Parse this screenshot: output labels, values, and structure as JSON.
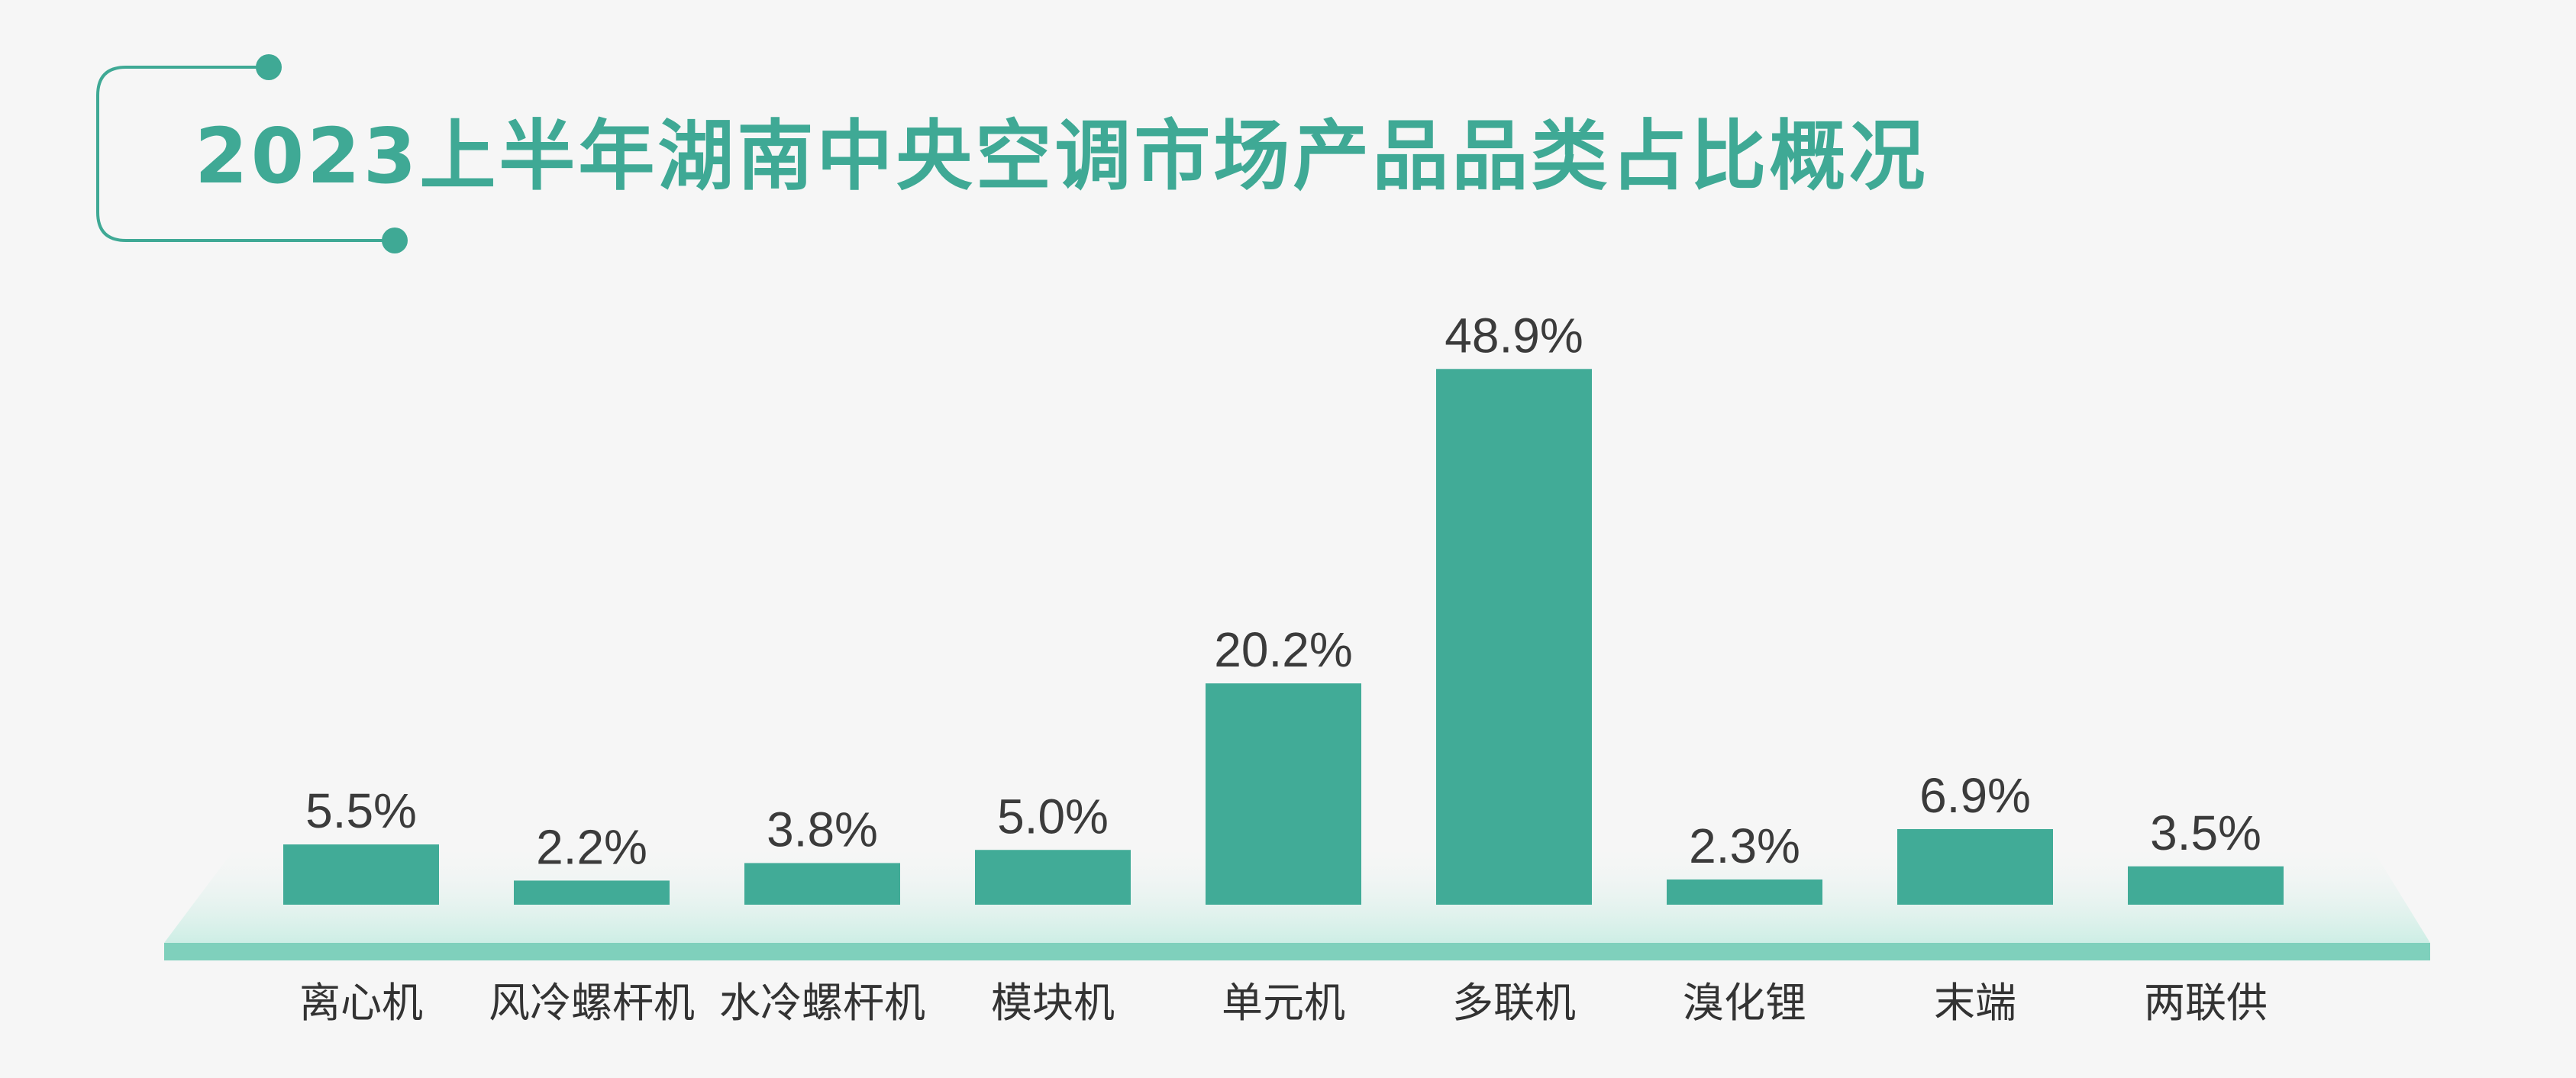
{
  "chart_data": {
    "type": "bar",
    "title": "2023上半年湖南中央空调市场产品品类占比概况",
    "categories": [
      "离心机",
      "风冷螺杆机",
      "水冷螺杆机",
      "模块机",
      "单元机",
      "多联机",
      "溴化锂",
      "末端",
      "两联供"
    ],
    "values": [
      5.5,
      2.2,
      3.8,
      5.0,
      20.2,
      48.9,
      2.3,
      6.9,
      3.5
    ],
    "value_labels": [
      "5.5%",
      "2.2%",
      "3.8%",
      "5.0%",
      "20.2%",
      "48.9%",
      "2.3%",
      "6.9%",
      "3.5%"
    ],
    "unit": "%",
    "ylim": [
      0,
      50
    ],
    "grid": false,
    "bar_color": "#41ab97",
    "platform_color": "#7fd0bc",
    "title_color": "#3fa995"
  }
}
